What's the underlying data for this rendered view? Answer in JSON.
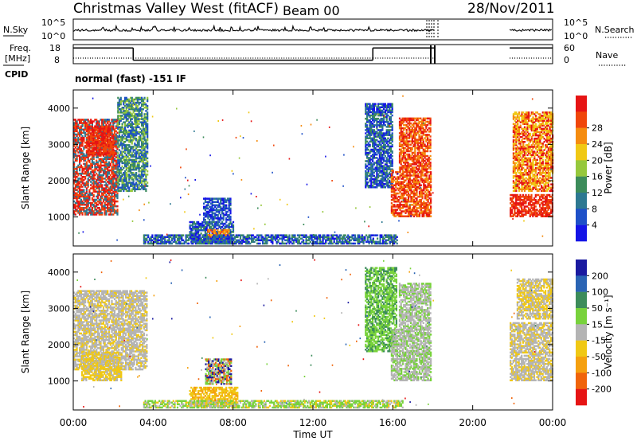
{
  "header": {
    "title": "Christmas Valley West (fitACF)",
    "beam": "Beam 00",
    "date": "28/Nov/2011"
  },
  "nsky_panel": {
    "left_label": "N.Sky",
    "right_label": "N.Search",
    "left_ticks": [
      "10^5",
      "10^0"
    ],
    "right_ticks": [
      "10^5",
      "10^0"
    ],
    "data_gap_hours": [
      18.1,
      21.85
    ]
  },
  "freq_panel": {
    "left_label_1": "Freq.",
    "left_label_2": "[MHz]",
    "right_label": "Nave",
    "left_ticks": [
      "18",
      "8"
    ],
    "right_ticks": [
      "60",
      "0"
    ],
    "freq_segments": [
      {
        "start": 0,
        "end": 3.0,
        "mhz": 17
      },
      {
        "start": 3.0,
        "end": 15.0,
        "mhz": 10
      },
      {
        "start": 15.0,
        "end": 18.1,
        "mhz": 17
      },
      {
        "start": 21.85,
        "end": 24.0,
        "mhz": 17
      }
    ]
  },
  "cpid": {
    "label": "CPID",
    "value": "normal (fast) -151 IF"
  },
  "chart_data": [
    {
      "type": "heatmap",
      "name": "power",
      "ylabel": "Slant Range [km]",
      "xlabel": "Time UT",
      "xlim": [
        0,
        24
      ],
      "ylim": [
        200,
        4500
      ],
      "x_ticks": [
        "00:00",
        "04:00",
        "08:00",
        "12:00",
        "16:00",
        "20:00",
        "00:00"
      ],
      "y_ticks": [
        1000,
        2000,
        3000,
        4000
      ],
      "colorbar": {
        "label": "Power [dB]",
        "ticks": [
          "4",
          "8",
          "12",
          "16",
          "20",
          "24",
          "28"
        ],
        "colors": [
          "#1414e6",
          "#1e50c8",
          "#2d7891",
          "#3c8c5a",
          "#96c83c",
          "#f0c814",
          "#f58c0f",
          "#f0460a",
          "#e61414"
        ]
      },
      "regions": [
        {
          "t0": 0.0,
          "t1": 2.2,
          "r0": 1050,
          "r1": 3700,
          "mix": [
            2,
            7,
            8
          ]
        },
        {
          "t0": 0.7,
          "t1": 2.1,
          "r0": 2700,
          "r1": 3500,
          "mix": [
            7,
            8
          ]
        },
        {
          "t0": 2.2,
          "t1": 3.7,
          "r0": 1700,
          "r1": 4300,
          "mix": [
            1,
            2,
            3,
            4
          ]
        },
        {
          "t0": 5.8,
          "t1": 8.0,
          "r0": 300,
          "r1": 850,
          "mix": [
            0,
            1,
            2,
            3
          ]
        },
        {
          "t0": 6.5,
          "t1": 7.9,
          "r0": 900,
          "r1": 1500,
          "mix": [
            0,
            1,
            2
          ]
        },
        {
          "t0": 6.7,
          "t1": 7.8,
          "r0": 350,
          "r1": 650,
          "mix": [
            5,
            6,
            7
          ]
        },
        {
          "t0": 3.5,
          "t1": 16.2,
          "r0": 250,
          "r1": 500,
          "mix": [
            0,
            1,
            2,
            3
          ]
        },
        {
          "t0": 14.6,
          "t1": 16.0,
          "r0": 1800,
          "r1": 4100,
          "mix": [
            0,
            1,
            2,
            3
          ]
        },
        {
          "t0": 15.9,
          "t1": 17.9,
          "r0": 1000,
          "r1": 2300,
          "mix": [
            6,
            7,
            8
          ]
        },
        {
          "t0": 16.3,
          "t1": 17.9,
          "r0": 2300,
          "r1": 3700,
          "mix": [
            6,
            7,
            8
          ]
        },
        {
          "t0": 21.85,
          "t1": 24.0,
          "r0": 1000,
          "r1": 1600,
          "mix": [
            7,
            8
          ]
        },
        {
          "t0": 22.0,
          "t1": 24.0,
          "r0": 1700,
          "r1": 3900,
          "mix": [
            5,
            6,
            8
          ]
        }
      ]
    },
    {
      "type": "heatmap",
      "name": "velocity",
      "ylabel": "Slant Range [km]",
      "xlabel": "Time UT",
      "xlim": [
        0,
        24
      ],
      "ylim": [
        200,
        4500
      ],
      "x_ticks": [
        "00:00",
        "04:00",
        "08:00",
        "12:00",
        "16:00",
        "20:00",
        "00:00"
      ],
      "y_ticks": [
        1000,
        2000,
        3000,
        4000
      ],
      "colorbar": {
        "label": "Velocity [m s⁻¹]",
        "ticks": [
          "200",
          "100",
          "50",
          "15",
          "-15",
          "-50",
          "-100",
          "-200"
        ],
        "colors": [
          "#1a1aa0",
          "#2a64b4",
          "#3c8c5a",
          "#78d23c",
          "#b4b4b4",
          "#f0c814",
          "#f5a00f",
          "#f0640a",
          "#e61414"
        ]
      },
      "regions": [
        {
          "t0": 0.0,
          "t1": 3.7,
          "r0": 1300,
          "r1": 3500,
          "mix": [
            4,
            4,
            4,
            5
          ]
        },
        {
          "t0": 0.4,
          "t1": 2.4,
          "r0": 1000,
          "r1": 1800,
          "mix": [
            4,
            5,
            5
          ]
        },
        {
          "t0": 6.6,
          "t1": 7.9,
          "r0": 900,
          "r1": 1600,
          "mix": [
            0,
            4,
            7,
            3
          ]
        },
        {
          "t0": 5.8,
          "t1": 8.2,
          "r0": 300,
          "r1": 800,
          "mix": [
            5,
            6,
            5
          ]
        },
        {
          "t0": 3.5,
          "t1": 16.5,
          "r0": 250,
          "r1": 450,
          "mix": [
            3,
            3,
            5,
            4
          ]
        },
        {
          "t0": 14.6,
          "t1": 16.2,
          "r0": 1800,
          "r1": 4100,
          "mix": [
            3,
            3,
            2
          ]
        },
        {
          "t0": 15.9,
          "t1": 17.9,
          "r0": 1000,
          "r1": 2400,
          "mix": [
            4,
            4,
            3
          ]
        },
        {
          "t0": 16.3,
          "t1": 17.9,
          "r0": 2400,
          "r1": 3700,
          "mix": [
            4,
            3,
            4
          ]
        },
        {
          "t0": 21.85,
          "t1": 24.0,
          "r0": 1000,
          "r1": 2600,
          "mix": [
            4,
            4,
            5
          ]
        },
        {
          "t0": 22.2,
          "t1": 24.0,
          "r0": 2700,
          "r1": 3800,
          "mix": [
            4,
            5
          ]
        }
      ]
    }
  ]
}
